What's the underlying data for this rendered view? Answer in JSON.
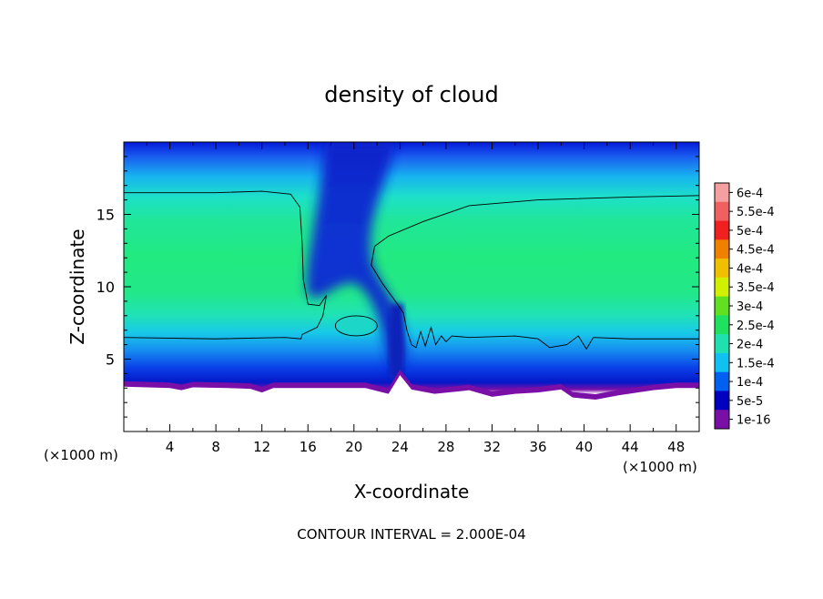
{
  "chart_data": {
    "type": "heatmap",
    "title": "density of cloud",
    "xlabel": "X-coordinate",
    "ylabel": "Z-coordinate",
    "x_unit_label": "(×1000 m)",
    "x_unit_label_right": "(×1000 m)",
    "xlim": [
      0,
      50
    ],
    "ylim": [
      0,
      20
    ],
    "x_ticks": [
      4,
      8,
      12,
      16,
      20,
      24,
      28,
      32,
      36,
      40,
      44,
      48
    ],
    "y_ticks": [
      5,
      10,
      15
    ],
    "grid": false,
    "footer": "CONTOUR INTERVAL = 2.000E-04",
    "colorbar": {
      "labels": [
        "6e-4",
        "5.5e-4",
        "5e-4",
        "4.5e-4",
        "4e-4",
        "3.5e-4",
        "3e-4",
        "2.5e-4",
        "2e-4",
        "1.5e-4",
        "1e-4",
        "5e-5",
        "1e-16"
      ],
      "colors": [
        "#f4a0a0",
        "#f06060",
        "#f02020",
        "#f08000",
        "#f0c000",
        "#d0f000",
        "#60e020",
        "#20e060",
        "#20e0b0",
        "#10c0f0",
        "#0060f0",
        "#0000c0",
        "#7a0fa8"
      ]
    },
    "field": {
      "cloud_base_z": 3.0,
      "core_density": 0.00023,
      "contour_level": 0.0002,
      "contour_left_top_z": 16.5,
      "contour_right_top_z": 16.3,
      "contour_bottom_z": 6.4,
      "clear_channel_x": [
        16,
        24
      ]
    }
  }
}
